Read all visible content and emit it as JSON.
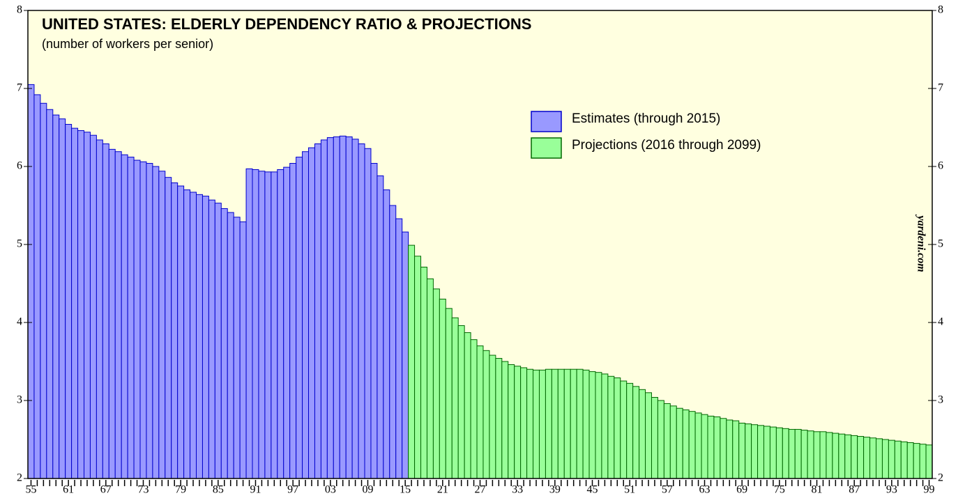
{
  "chart_data": {
    "type": "bar",
    "title": "UNITED STATES: ELDERLY DEPENDENCY RATIO & PROJECTIONS",
    "subtitle": "(number of workers per senior)",
    "annotation": "yardeni.com",
    "background": "#ffffe0",
    "categories": [
      "55",
      null,
      null,
      null,
      null,
      null,
      "61",
      null,
      null,
      null,
      null,
      null,
      "67",
      null,
      null,
      null,
      null,
      null,
      "73",
      null,
      null,
      null,
      null,
      null,
      "79",
      null,
      null,
      null,
      null,
      null,
      "85",
      null,
      null,
      null,
      null,
      null,
      "91",
      null,
      null,
      null,
      null,
      null,
      "97",
      null,
      null,
      null,
      null,
      null,
      "03",
      null,
      null,
      null,
      null,
      null,
      "09",
      null,
      null,
      null,
      null,
      null,
      "15",
      null,
      null,
      null,
      null,
      null,
      "21",
      null,
      null,
      null,
      null,
      null,
      "27",
      null,
      null,
      null,
      null,
      null,
      "33",
      null,
      null,
      null,
      null,
      null,
      "39",
      null,
      null,
      null,
      null,
      null,
      "45",
      null,
      null,
      null,
      null,
      null,
      "51",
      null,
      null,
      null,
      null,
      null,
      "57",
      null,
      null,
      null,
      null,
      null,
      "63",
      null,
      null,
      null,
      null,
      null,
      "69",
      null,
      null,
      null,
      null,
      null,
      "75",
      null,
      null,
      null,
      null,
      null,
      "81",
      null,
      null,
      null,
      null,
      null,
      "87",
      null,
      null,
      null,
      null,
      null,
      "93",
      null,
      null,
      null,
      null,
      null,
      "99"
    ],
    "series": [
      {
        "name": "Estimates (through 2015)",
        "color": "#9999ff",
        "edge_color": "#0000cc",
        "values": [
          7.05,
          6.92,
          6.81,
          6.73,
          6.66,
          6.61,
          6.54,
          6.49,
          6.46,
          6.44,
          6.4,
          6.34,
          6.29,
          6.22,
          6.19,
          6.15,
          6.12,
          6.08,
          6.06,
          6.04,
          6.0,
          5.94,
          5.86,
          5.79,
          5.75,
          5.7,
          5.67,
          5.64,
          5.62,
          5.57,
          5.53,
          5.46,
          5.41,
          5.35,
          5.29,
          5.97,
          5.96,
          5.94,
          5.93,
          5.93,
          5.96,
          5.99,
          6.04,
          6.12,
          6.19,
          6.24,
          6.29,
          6.34,
          6.37,
          6.38,
          6.39,
          6.38,
          6.35,
          6.29,
          6.23,
          6.04,
          5.88,
          5.7,
          5.5,
          5.33,
          5.16,
          null,
          null,
          null,
          null,
          null,
          null,
          null,
          null,
          null,
          null,
          null,
          null,
          null,
          null,
          null,
          null,
          null,
          null,
          null,
          null,
          null,
          null,
          null,
          null,
          null,
          null,
          null,
          null,
          null,
          null,
          null,
          null,
          null,
          null,
          null,
          null,
          null,
          null,
          null,
          null,
          null,
          null,
          null,
          null,
          null,
          null,
          null,
          null,
          null,
          null,
          null,
          null,
          null,
          null,
          null,
          null,
          null,
          null,
          null,
          null,
          null,
          null,
          null,
          null,
          null,
          null,
          null,
          null,
          null,
          null,
          null,
          null,
          null,
          null,
          null,
          null,
          null,
          null,
          null,
          null,
          null,
          null,
          null,
          null
        ]
      },
      {
        "name": "Projections (2016 through 2099)",
        "color": "#99ff99",
        "edge_color": "#006600",
        "values": [
          null,
          null,
          null,
          null,
          null,
          null,
          null,
          null,
          null,
          null,
          null,
          null,
          null,
          null,
          null,
          null,
          null,
          null,
          null,
          null,
          null,
          null,
          null,
          null,
          null,
          null,
          null,
          null,
          null,
          null,
          null,
          null,
          null,
          null,
          null,
          null,
          null,
          null,
          null,
          null,
          null,
          null,
          null,
          null,
          null,
          null,
          null,
          null,
          null,
          null,
          null,
          null,
          null,
          null,
          null,
          null,
          null,
          null,
          null,
          null,
          null,
          4.99,
          4.85,
          4.71,
          4.56,
          4.43,
          4.3,
          4.18,
          4.06,
          3.96,
          3.87,
          3.78,
          3.7,
          3.64,
          3.58,
          3.54,
          3.5,
          3.46,
          3.44,
          3.42,
          3.4,
          3.39,
          3.39,
          3.4,
          3.4,
          3.4,
          3.4,
          3.4,
          3.4,
          3.39,
          3.37,
          3.36,
          3.34,
          3.31,
          3.29,
          3.25,
          3.22,
          3.18,
          3.14,
          3.1,
          3.04,
          3.0,
          2.96,
          2.93,
          2.9,
          2.88,
          2.86,
          2.84,
          2.82,
          2.8,
          2.79,
          2.77,
          2.75,
          2.74,
          2.71,
          2.7,
          2.69,
          2.68,
          2.67,
          2.66,
          2.65,
          2.64,
          2.63,
          2.63,
          2.62,
          2.61,
          2.6,
          2.6,
          2.59,
          2.58,
          2.57,
          2.56,
          2.55,
          2.54,
          2.53,
          2.52,
          2.51,
          2.5,
          2.49,
          2.48,
          2.47,
          2.46,
          2.45,
          2.44,
          2.43
        ]
      }
    ],
    "ylim": [
      2,
      8
    ],
    "yticks": [
      2,
      3,
      4,
      5,
      6,
      7,
      8
    ],
    "y2lim": [
      2,
      8
    ],
    "y2ticks": [
      2,
      3,
      4,
      5,
      6,
      7,
      8
    ],
    "legend": "upper right"
  }
}
